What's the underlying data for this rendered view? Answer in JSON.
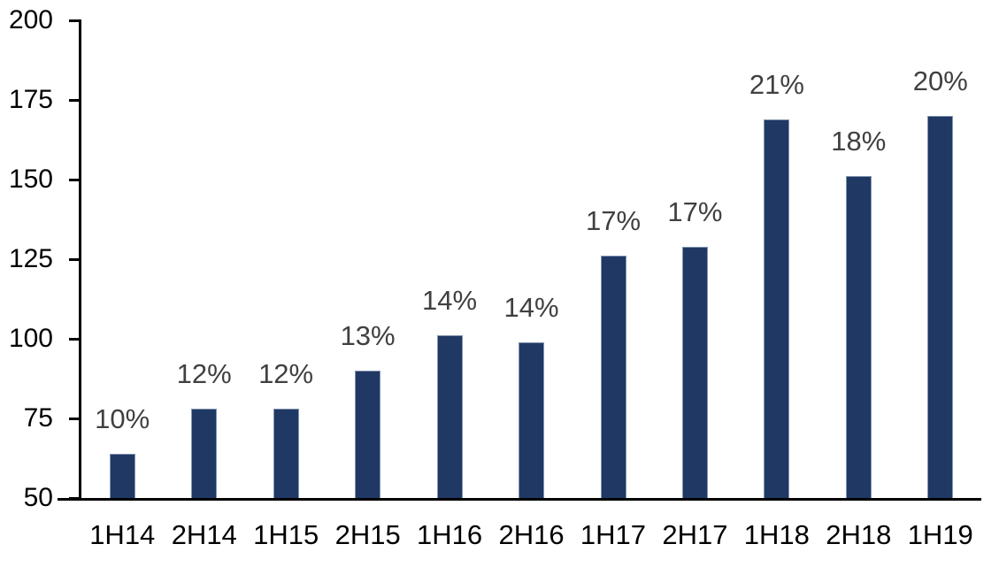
{
  "chart_data": {
    "type": "bar",
    "title": "",
    "xlabel": "",
    "ylabel": "",
    "categories": [
      "1H14",
      "2H14",
      "1H15",
      "2H15",
      "1H16",
      "2H16",
      "1H17",
      "2H17",
      "1H18",
      "2H18",
      "1H19"
    ],
    "values": [
      64,
      78,
      78,
      90,
      101,
      99,
      126,
      129,
      169,
      151,
      170
    ],
    "data_labels": [
      "10%",
      "12%",
      "12%",
      "13%",
      "14%",
      "14%",
      "17%",
      "17%",
      "21%",
      "18%",
      "20%"
    ],
    "ylim": [
      50,
      200
    ],
    "y_ticks": [
      50,
      75,
      100,
      125,
      150,
      175,
      200
    ],
    "grid": false,
    "legend": false,
    "colors": {
      "bar_fill": "#1F3864",
      "bar_border": "#8496B0",
      "data_label": "#404040",
      "axis_line": "#000000",
      "axis_label": "#000000",
      "background": "#FFFFFF"
    }
  }
}
